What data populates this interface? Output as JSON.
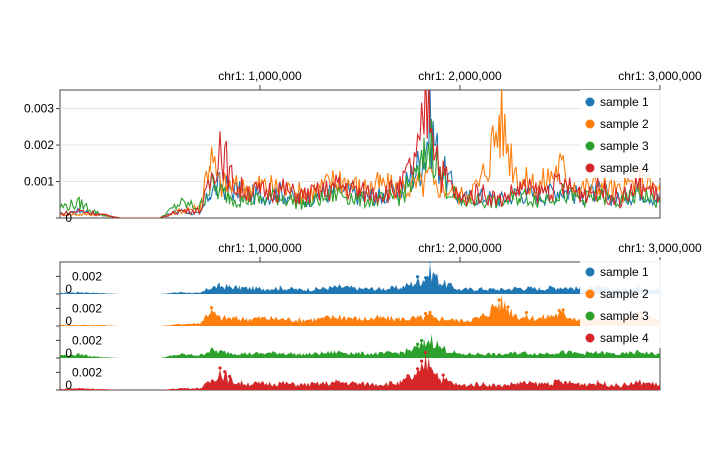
{
  "chart_data": [
    {
      "type": "line",
      "title": "",
      "xlabel": "",
      "ylabel": "",
      "xlim": [
        0,
        3000000
      ],
      "ylim": [
        0,
        0.0034
      ],
      "x_ticks": [
        {
          "value": 1000000,
          "label": "chr1: 1,000,000"
        },
        {
          "value": 2000000,
          "label": "chr1: 2,000,000"
        },
        {
          "value": 3000000,
          "label": "chr1: 3,000,000"
        }
      ],
      "y_ticks": [
        {
          "value": 0,
          "label": "0"
        },
        {
          "value": 0.001,
          "label": "0.001"
        },
        {
          "value": 0.002,
          "label": "0.002"
        },
        {
          "value": 0.003,
          "label": "0.003"
        }
      ],
      "grid": true,
      "legend_position": "top-right",
      "x": [
        0,
        100000,
        200000,
        300000,
        400000,
        500000,
        600000,
        700000,
        750000,
        800000,
        850000,
        900000,
        1000000,
        1100000,
        1200000,
        1300000,
        1400000,
        1500000,
        1600000,
        1700000,
        1800000,
        1820000,
        1850000,
        1870000,
        1900000,
        2000000,
        2100000,
        2200000,
        2300000,
        2400000,
        2500000,
        2600000,
        2700000,
        2800000,
        2900000,
        3000000
      ],
      "series": [
        {
          "name": "sample 1",
          "color": "#1f77b4",
          "values": [
            0.0001,
            0.0002,
            0.0001,
            0,
            0,
            0,
            0.0002,
            0.0001,
            0.0007,
            0.0009,
            0.0008,
            0.0007,
            0.0006,
            0.0007,
            0.0005,
            0.0006,
            0.0008,
            0.0006,
            0.0006,
            0.0007,
            0.0015,
            0.0018,
            0.0025,
            0.0022,
            0.0014,
            0.0005,
            0.0006,
            0.0005,
            0.0007,
            0.0006,
            0.0008,
            0.0006,
            0.0007,
            0.0005,
            0.0008,
            0.0005
          ]
        },
        {
          "name": "sample 2",
          "color": "#ff7f0e",
          "values": [
            0.0001,
            0.0001,
            0.0001,
            0,
            0,
            0,
            0.0002,
            0.0003,
            0.0017,
            0.0009,
            0.0009,
            0.0008,
            0.0009,
            0.0008,
            0.0007,
            0.0008,
            0.0011,
            0.0008,
            0.0009,
            0.0008,
            0.0009,
            0.0009,
            0.0012,
            0.0008,
            0.0009,
            0.0006,
            0.0009,
            0.0027,
            0.001,
            0.0009,
            0.0014,
            0.0008,
            0.0009,
            0.0007,
            0.0011,
            0.0007
          ]
        },
        {
          "name": "sample 3",
          "color": "#2ca02c",
          "values": [
            0.0003,
            0.0004,
            0.0001,
            0,
            0,
            0,
            0.0004,
            0.0003,
            0.0009,
            0.0007,
            0.0006,
            0.0005,
            0.0005,
            0.0006,
            0.0004,
            0.0005,
            0.0007,
            0.0005,
            0.0005,
            0.0006,
            0.0012,
            0.0016,
            0.0021,
            0.0019,
            0.0012,
            0.0004,
            0.0005,
            0.0004,
            0.0006,
            0.0005,
            0.0007,
            0.0005,
            0.0006,
            0.0004,
            0.0007,
            0.0004
          ]
        },
        {
          "name": "sample 4",
          "color": "#d62728",
          "values": [
            0.0001,
            0.0002,
            0.0001,
            0,
            0,
            0,
            0.0002,
            0.0002,
            0.0009,
            0.0022,
            0.0011,
            0.0008,
            0.0007,
            0.0008,
            0.0006,
            0.0007,
            0.0009,
            0.0007,
            0.0007,
            0.0008,
            0.0018,
            0.0029,
            0.0034,
            0.0024,
            0.0013,
            0.0005,
            0.0007,
            0.0005,
            0.0008,
            0.0007,
            0.0009,
            0.0007,
            0.0008,
            0.0005,
            0.0009,
            0.0006
          ]
        }
      ]
    },
    {
      "type": "area",
      "title": "",
      "xlabel": "",
      "ylabel": "",
      "xlim": [
        0,
        3000000
      ],
      "ylim": [
        0,
        0.0034
      ],
      "x_ticks": [
        {
          "value": 1000000,
          "label": "chr1: 1,000,000"
        },
        {
          "value": 2000000,
          "label": "chr1: 2,000,000"
        },
        {
          "value": 3000000,
          "label": "chr1: 3,000,000"
        }
      ],
      "track_y_ticks": [
        {
          "value": 0,
          "label": "0"
        },
        {
          "value": 0.002,
          "label": "0.002"
        }
      ],
      "grid": false,
      "legend_position": "top-right",
      "tracks": [
        "sample 1",
        "sample 2",
        "sample 3",
        "sample 4"
      ]
    }
  ],
  "legend": [
    {
      "label": "sample 1",
      "color": "#1f77b4"
    },
    {
      "label": "sample 2",
      "color": "#ff7f0e"
    },
    {
      "label": "sample 3",
      "color": "#2ca02c"
    },
    {
      "label": "sample 4",
      "color": "#d62728"
    }
  ]
}
